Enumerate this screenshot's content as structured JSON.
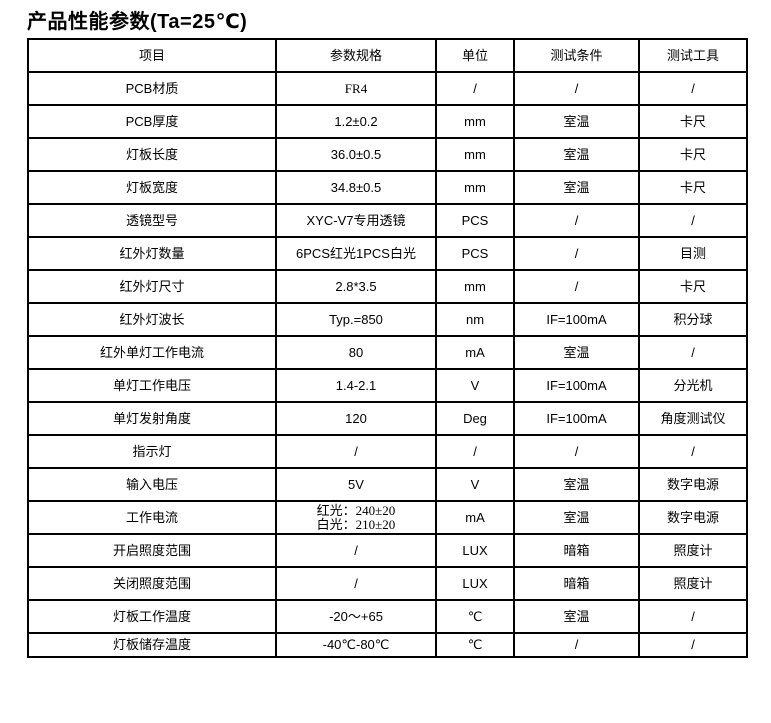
{
  "title": "产品性能参数(Ta=25℃)",
  "table": {
    "headers": [
      "项目",
      "参数规格",
      "单位",
      "测试条件",
      "测试工具"
    ],
    "rows": [
      [
        "PCB材质",
        "FR4",
        "/",
        "/",
        "/"
      ],
      [
        "PCB厚度",
        "1.2±0.2",
        "mm",
        "室温",
        "卡尺"
      ],
      [
        "灯板长度",
        "36.0±0.5",
        "mm",
        "室温",
        "卡尺"
      ],
      [
        "灯板宽度",
        "34.8±0.5",
        "mm",
        "室温",
        "卡尺"
      ],
      [
        "透镜型号",
        "XYC-V7专用透镜",
        "PCS",
        "/",
        "/"
      ],
      [
        "红外灯数量",
        "6PCS红光1PCS白光",
        "PCS",
        "/",
        "目测"
      ],
      [
        "红外灯尺寸",
        "2.8*3.5",
        "mm",
        "/",
        "卡尺"
      ],
      [
        "红外灯波长",
        "Typ.=850",
        "nm",
        "IF=100mA",
        "积分球"
      ],
      [
        "红外单灯工作电流",
        "80",
        "mA",
        "室温",
        "/"
      ],
      [
        "单灯工作电压",
        "1.4-2.1",
        "V",
        "IF=100mA",
        "分光机"
      ],
      [
        "单灯发射角度",
        "120",
        "Deg",
        "IF=100mA",
        "角度测试仪"
      ],
      [
        "指示灯",
        "/",
        "/",
        "/",
        "/"
      ],
      [
        "输入电压",
        "5V",
        "V",
        "室温",
        "数字电源"
      ],
      [
        "工作电流",
        "红光：240±20\n白光：210±20",
        "mA",
        "室温",
        "数字电源"
      ],
      [
        "开启照度范围",
        "/",
        "LUX",
        "暗箱",
        "照度计"
      ],
      [
        "关闭照度范围",
        "/",
        "LUX",
        "暗箱",
        "照度计"
      ],
      [
        "灯板工作温度",
        "-20～+65",
        "℃",
        "室温",
        "/"
      ],
      [
        "灯板储存温度",
        "-40℃-80℃",
        "℃",
        "/",
        "/"
      ]
    ]
  }
}
